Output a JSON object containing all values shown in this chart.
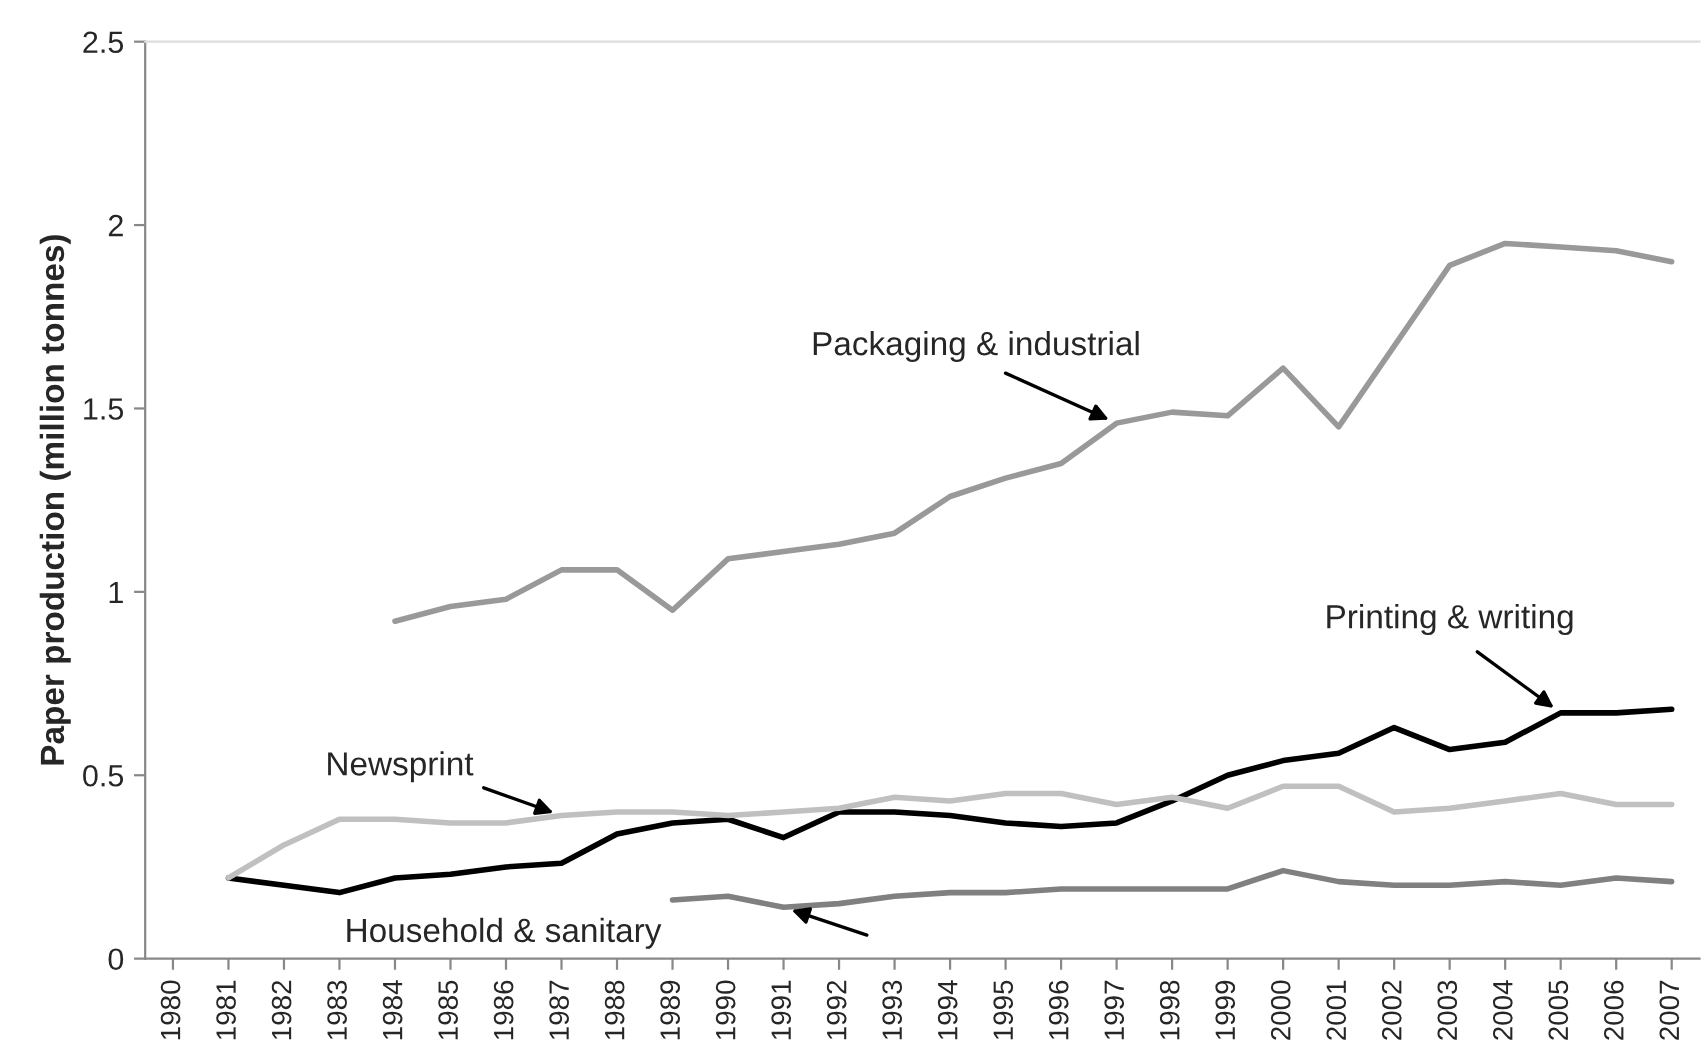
{
  "chart_data": {
    "type": "line",
    "ylabel": "Paper production (million tonnes)",
    "categories": [
      "1980",
      "1981",
      "1982",
      "1983",
      "1984",
      "1985",
      "1986",
      "1987",
      "1988",
      "1989",
      "1990",
      "1991",
      "1992",
      "1993",
      "1994",
      "1995",
      "1996",
      "1997",
      "1998",
      "1999",
      "2000",
      "2001",
      "2002",
      "2003",
      "2004",
      "2005",
      "2006",
      "2007"
    ],
    "ylim": [
      0,
      2.5
    ],
    "yticks": [
      0,
      0.5,
      1,
      1.5,
      2,
      2.5
    ],
    "grid": false,
    "legend": false,
    "marker": "none",
    "line_style": "solid",
    "series": [
      {
        "name": "Packaging & industrial",
        "color": "#999999",
        "values": [
          null,
          null,
          null,
          null,
          0.92,
          0.96,
          0.98,
          1.06,
          1.06,
          0.95,
          1.09,
          1.11,
          1.13,
          1.16,
          1.26,
          1.31,
          1.35,
          1.46,
          1.49,
          1.48,
          1.61,
          1.45,
          1.67,
          1.89,
          1.95,
          1.94,
          1.93,
          1.9
        ]
      },
      {
        "name": "Printing & writing",
        "color": "#000000",
        "values": [
          null,
          0.22,
          0.2,
          0.18,
          0.22,
          0.23,
          0.25,
          0.26,
          0.34,
          0.37,
          0.38,
          0.33,
          0.4,
          0.4,
          0.39,
          0.37,
          0.36,
          0.37,
          0.43,
          0.5,
          0.54,
          0.56,
          0.63,
          0.57,
          0.59,
          0.67,
          0.67,
          0.68
        ]
      },
      {
        "name": "Newsprint",
        "color": "#c0c0c0",
        "values": [
          null,
          0.22,
          0.31,
          0.38,
          0.38,
          0.37,
          0.37,
          0.39,
          0.4,
          0.4,
          0.39,
          0.4,
          0.41,
          0.44,
          0.43,
          0.45,
          0.45,
          0.42,
          0.44,
          0.41,
          0.47,
          0.47,
          0.4,
          0.41,
          0.43,
          0.45,
          0.42,
          0.42
        ]
      },
      {
        "name": "Household & sanitary",
        "color": "#808080",
        "values": [
          null,
          null,
          null,
          null,
          null,
          null,
          null,
          null,
          null,
          0.16,
          0.17,
          0.14,
          0.15,
          0.17,
          0.18,
          0.18,
          0.19,
          0.19,
          0.19,
          0.19,
          0.24,
          0.21,
          0.2,
          0.2,
          0.21,
          0.2,
          0.22,
          0.21
        ]
      }
    ]
  }
}
